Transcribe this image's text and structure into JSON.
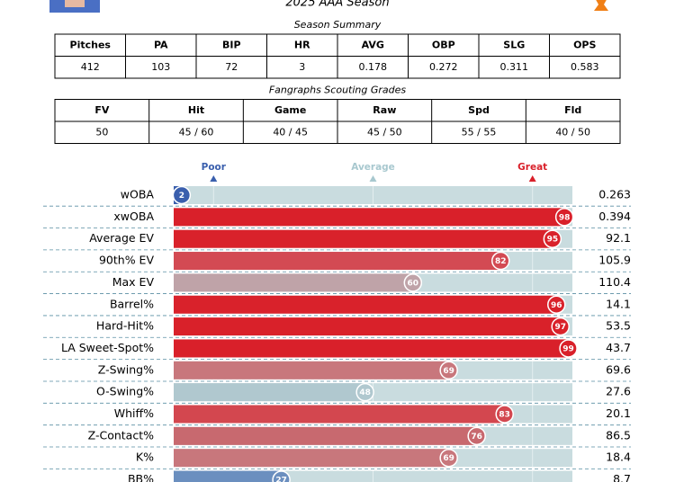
{
  "header": {
    "subtitle": "2025 AAA Season"
  },
  "season_summary": {
    "caption": "Season Summary",
    "columns": [
      "Pitches",
      "PA",
      "BIP",
      "HR",
      "AVG",
      "OBP",
      "SLG",
      "OPS"
    ],
    "rows": [
      [
        412,
        103,
        72,
        3,
        0.178,
        0.272,
        0.311,
        0.583
      ]
    ]
  },
  "scouting": {
    "caption": "Fangraphs Scouting Grades",
    "columns": [
      "FV",
      "Hit",
      "Game",
      "Raw",
      "Spd",
      "Fld"
    ],
    "rows": [
      [
        50,
        "45 / 60",
        "40 / 45",
        "45 / 50",
        "55 / 55",
        "40 / 50"
      ]
    ]
  },
  "chart_data": {
    "type": "bar",
    "orientation": "horizontal",
    "categories": [
      "wOBA",
      "xwOBA",
      "Average EV",
      "90th% EV",
      "Max EV",
      "Barrel%",
      "Hard-Hit%",
      "LA Sweet-Spot%",
      "Z-Swing%",
      "O-Swing%",
      "Whiff%",
      "Z-Contact%",
      "K%",
      "BB%"
    ],
    "values": [
      2,
      98,
      95,
      82,
      60,
      96,
      97,
      99,
      69,
      48,
      83,
      76,
      69,
      27
    ],
    "colors": [
      "#3a5fad",
      "#d9202a",
      "#d9222b",
      "#d34a53",
      "#bfa3a8",
      "#d9222b",
      "#d9212a",
      "#d9202a",
      "#c8777c",
      "#b0c8cf",
      "#d3474f",
      "#c8696f",
      "#c8777c",
      "#6b8fbf"
    ],
    "stat_values": [
      0.263,
      0.394,
      92.1,
      105.9,
      110.4,
      14.1,
      53.5,
      43.7,
      69.6,
      27.6,
      20.1,
      86.5,
      18.4,
      8.7
    ],
    "xlim": [
      0,
      100
    ],
    "xticks": [
      {
        "value": 10,
        "label": "Poor"
      },
      {
        "value": 50,
        "label": "Average"
      },
      {
        "value": 90,
        "label": "Great"
      }
    ],
    "xtick_colors": [
      "#3a5fad",
      "#a8c8cf",
      "#d9202a"
    ],
    "track_color": "#c9dcdf",
    "grid": true
  }
}
